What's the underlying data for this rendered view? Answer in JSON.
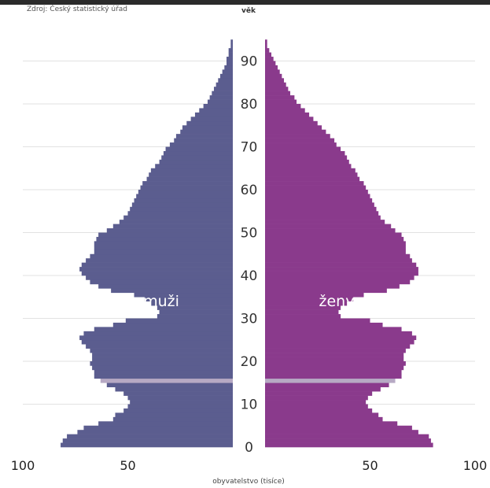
{
  "source": "Zdroj: Český statistický úřad",
  "chart_data": {
    "type": "bar",
    "orientation": "horizontal-population-pyramid",
    "title": "",
    "age_axis_label": "věk",
    "xlabel": "obyvatelstvo (tisíce)",
    "age_ticks": [
      "0",
      "10",
      "20",
      "30",
      "40",
      "50",
      "60",
      "70",
      "80",
      "90"
    ],
    "x_ticks_left": [
      "100",
      "50"
    ],
    "x_ticks_right": [
      "50",
      "100"
    ],
    "xlim": [
      0,
      100
    ],
    "ylim": [
      0,
      95
    ],
    "grid": true,
    "colors": {
      "male": "#5b5d8f",
      "female": "#8a3a8c",
      "highlight": "#b7a9c4",
      "grid": "#e2e2e2"
    },
    "highlight_age": 15,
    "series": [
      {
        "name": "muži",
        "values": [
          82,
          81,
          79,
          74,
          71,
          64,
          57,
          56,
          52,
          50,
          49,
          50,
          52,
          56,
          60,
          63,
          66,
          66,
          67,
          68,
          67,
          67,
          68,
          70,
          72,
          73,
          71,
          66,
          57,
          51,
          36,
          35,
          36,
          39,
          42,
          47,
          58,
          64,
          68,
          70,
          72,
          73,
          72,
          70,
          68,
          66,
          66,
          66,
          65,
          64,
          60,
          57,
          54,
          52,
          50,
          49,
          48,
          47,
          46,
          45,
          44,
          43,
          41,
          40,
          39,
          37,
          35,
          34,
          33,
          32,
          30,
          28,
          27,
          25,
          24,
          22,
          20,
          18,
          16,
          14,
          12,
          11,
          10,
          9,
          8,
          7,
          6,
          5,
          4,
          3,
          3,
          2,
          2,
          1,
          1,
          0
        ]
      },
      {
        "name": "ženy",
        "values": [
          80,
          79,
          78,
          73,
          70,
          63,
          56,
          54,
          51,
          49,
          48,
          49,
          51,
          55,
          59,
          62,
          65,
          65,
          66,
          67,
          66,
          66,
          67,
          69,
          71,
          72,
          70,
          65,
          56,
          50,
          36,
          35,
          36,
          39,
          42,
          47,
          58,
          64,
          69,
          71,
          73,
          73,
          72,
          70,
          69,
          67,
          67,
          67,
          66,
          65,
          62,
          60,
          57,
          55,
          54,
          53,
          52,
          51,
          50,
          49,
          48,
          47,
          45,
          44,
          43,
          41,
          40,
          39,
          38,
          36,
          34,
          33,
          31,
          29,
          27,
          25,
          23,
          21,
          19,
          17,
          15,
          14,
          12,
          11,
          10,
          9,
          8,
          7,
          6,
          5,
          4,
          3,
          2,
          1,
          1,
          0
        ]
      }
    ]
  }
}
